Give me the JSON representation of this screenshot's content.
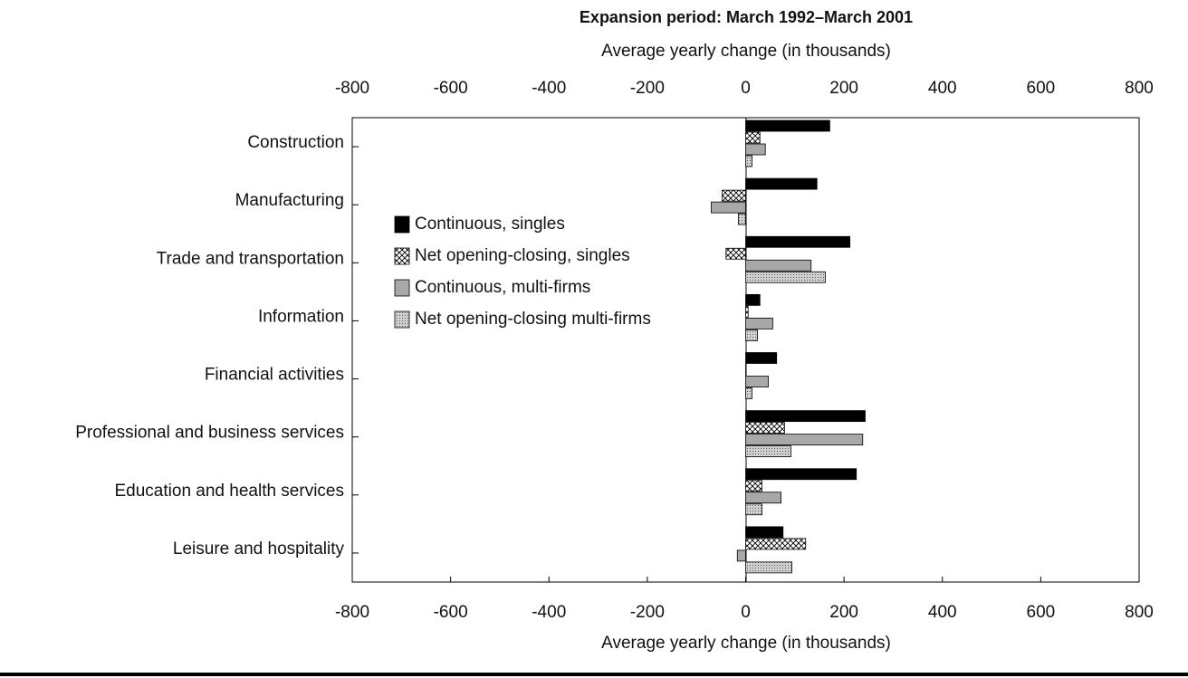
{
  "chart_data": {
    "type": "hbar",
    "title": "Expansion period:  March 1992–March 2001",
    "xlabel": "Average yearly change (in thousands)",
    "categories": [
      "Construction",
      "Manufacturing",
      "Trade and transportation",
      "Information",
      "Financial activities",
      "Professional and business services",
      "Education and health services",
      "Leisure and hospitality"
    ],
    "series": [
      {
        "name": "Continuous, singles",
        "color": "#000000",
        "pattern": "solid",
        "values": [
          171,
          145,
          212,
          29,
          63,
          243,
          225,
          76
        ]
      },
      {
        "name": "Net opening-closing, singles",
        "color": "#ffffff",
        "pattern": "crosshatch",
        "values": [
          29,
          -48,
          -40,
          5,
          1,
          79,
          33,
          122
        ]
      },
      {
        "name": "Continuous, multi-firms",
        "color": "#a8a8a8",
        "pattern": "solid",
        "values": [
          40,
          -70,
          133,
          55,
          46,
          238,
          72,
          -17
        ]
      },
      {
        "name": "Net opening-closing multi-firms",
        "color": "#c8c8c8",
        "pattern": "dots",
        "values": [
          13,
          -15,
          162,
          24,
          13,
          92,
          33,
          94
        ]
      }
    ],
    "xlim": [
      -800,
      800
    ],
    "xticks": [
      -800,
      -600,
      -400,
      -200,
      0,
      200,
      400,
      600,
      800
    ],
    "legend": "upper-left"
  }
}
